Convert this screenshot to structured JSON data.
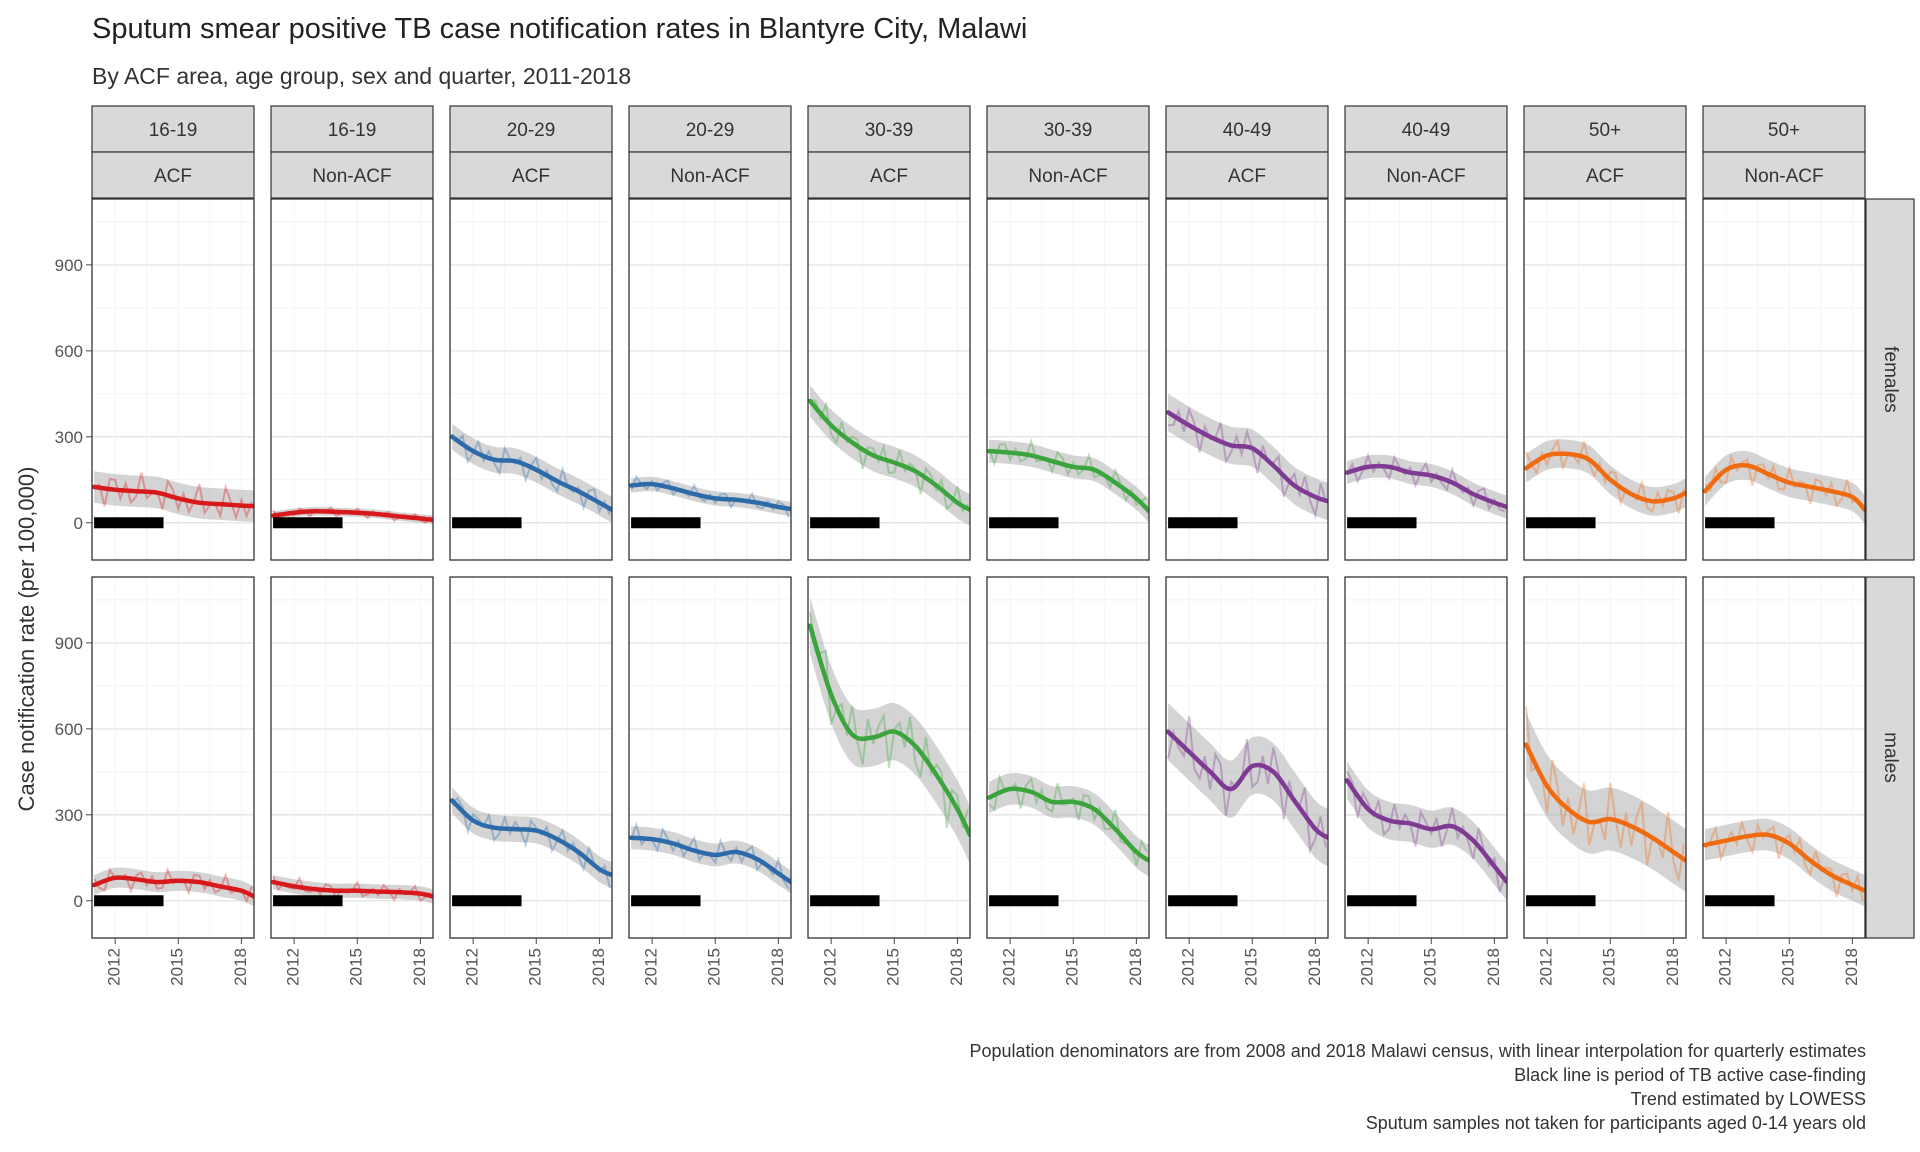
{
  "chart_data": {
    "type": "line",
    "title": "Sputum smear positive TB case notification rates in Blantyre City, Malawi",
    "subtitle": "By ACF area, age group, sex and quarter, 2011-2018",
    "ylabel": "Case notification rate (per 100,000)",
    "xlabel": "",
    "ylim": [
      -130,
      1130
    ],
    "xlim": [
      2010.9,
      2018.6
    ],
    "x_ticks": [
      2012,
      2015,
      2018
    ],
    "x_tick_labels": [
      "2012",
      "2015",
      "2018"
    ],
    "y_ticks": [
      0,
      300,
      600,
      900
    ],
    "y_tick_labels": [
      "0",
      "300",
      "600",
      "900"
    ],
    "grid": true,
    "legend": "none",
    "facet_columns": [
      {
        "age": "16-19",
        "area": "ACF",
        "color": "#d7191c"
      },
      {
        "age": "16-19",
        "area": "Non-ACF",
        "color": "#d7191c"
      },
      {
        "age": "20-29",
        "area": "ACF",
        "color": "#2c6aa9"
      },
      {
        "age": "20-29",
        "area": "Non-ACF",
        "color": "#2c6aa9"
      },
      {
        "age": "30-39",
        "area": "ACF",
        "color": "#3ca43c"
      },
      {
        "age": "30-39",
        "area": "Non-ACF",
        "color": "#3ca43c"
      },
      {
        "age": "40-49",
        "area": "ACF",
        "color": "#7f3a93"
      },
      {
        "age": "40-49",
        "area": "Non-ACF",
        "color": "#7f3a93"
      },
      {
        "age": "50+",
        "area": "ACF",
        "color": "#f06a10"
      },
      {
        "age": "50+",
        "area": "Non-ACF",
        "color": "#f06a10"
      }
    ],
    "facet_rows": [
      "females",
      "males"
    ],
    "acf_period": [
      2011.0,
      2014.3
    ],
    "trend_x": [
      2011.0,
      2012.0,
      2013.0,
      2014.0,
      2015.0,
      2016.0,
      2017.0,
      2018.0,
      2018.6
    ],
    "panels": [
      {
        "row": "females",
        "col": 0,
        "trend": [
          125,
          115,
          110,
          105,
          85,
          70,
          65,
          60,
          58
        ],
        "band": 55
      },
      {
        "row": "females",
        "col": 1,
        "trend": [
          25,
          35,
          40,
          38,
          35,
          30,
          22,
          15,
          10
        ],
        "band": 15
      },
      {
        "row": "females",
        "col": 2,
        "trend": [
          300,
          250,
          220,
          215,
          185,
          145,
          110,
          70,
          45
        ],
        "band": 45
      },
      {
        "row": "females",
        "col": 3,
        "trend": [
          130,
          135,
          120,
          100,
          85,
          80,
          70,
          55,
          48
        ],
        "band": 25
      },
      {
        "row": "females",
        "col": 4,
        "trend": [
          425,
          340,
          280,
          235,
          210,
          180,
          130,
          70,
          45
        ],
        "band": 55
      },
      {
        "row": "females",
        "col": 5,
        "trend": [
          250,
          245,
          235,
          215,
          195,
          185,
          140,
          85,
          40
        ],
        "band": 40
      },
      {
        "row": "females",
        "col": 6,
        "trend": [
          385,
          340,
          300,
          270,
          260,
          200,
          130,
          90,
          75
        ],
        "band": 65
      },
      {
        "row": "females",
        "col": 7,
        "trend": [
          175,
          195,
          195,
          175,
          165,
          140,
          100,
          70,
          55
        ],
        "band": 40
      },
      {
        "row": "females",
        "col": 8,
        "trend": [
          190,
          235,
          240,
          220,
          150,
          100,
          75,
          85,
          105
        ],
        "band": 50
      },
      {
        "row": "females",
        "col": 9,
        "trend": [
          110,
          185,
          200,
          170,
          140,
          125,
          110,
          90,
          45
        ],
        "band": 50
      },
      {
        "row": "males",
        "col": 0,
        "trend": [
          55,
          80,
          75,
          65,
          70,
          65,
          50,
          35,
          15
        ],
        "band": 35
      },
      {
        "row": "males",
        "col": 1,
        "trend": [
          65,
          50,
          40,
          35,
          35,
          32,
          30,
          25,
          15
        ],
        "band": 25
      },
      {
        "row": "males",
        "col": 2,
        "trend": [
          350,
          280,
          255,
          250,
          245,
          215,
          170,
          110,
          90
        ],
        "band": 45
      },
      {
        "row": "males",
        "col": 3,
        "trend": [
          220,
          215,
          200,
          175,
          160,
          170,
          145,
          95,
          65
        ],
        "band": 40
      },
      {
        "row": "males",
        "col": 4,
        "trend": [
          960,
          720,
          580,
          570,
          590,
          540,
          440,
          320,
          230
        ],
        "band": 100
      },
      {
        "row": "males",
        "col": 5,
        "trend": [
          360,
          390,
          380,
          345,
          345,
          320,
          250,
          170,
          140
        ],
        "band": 55
      },
      {
        "row": "males",
        "col": 6,
        "trend": [
          590,
          520,
          450,
          390,
          470,
          450,
          350,
          250,
          220
        ],
        "band": 100
      },
      {
        "row": "males",
        "col": 7,
        "trend": [
          420,
          320,
          280,
          270,
          250,
          260,
          210,
          120,
          65
        ],
        "band": 65
      },
      {
        "row": "males",
        "col": 8,
        "trend": [
          545,
          400,
          320,
          275,
          285,
          260,
          220,
          170,
          140
        ],
        "band": 110
      },
      {
        "row": "males",
        "col": 9,
        "trend": [
          195,
          210,
          225,
          230,
          200,
          140,
          90,
          55,
          35
        ],
        "band": 55
      }
    ]
  },
  "caption": [
    "Population denominators are from 2008 and 2018 Malawi census, with linear interpolation for quarterly estimates",
    "Black line is period of TB active case-finding",
    "Trend estimated by LOWESS",
    "Sputum samples not taken for participants aged 0-14 years old"
  ]
}
